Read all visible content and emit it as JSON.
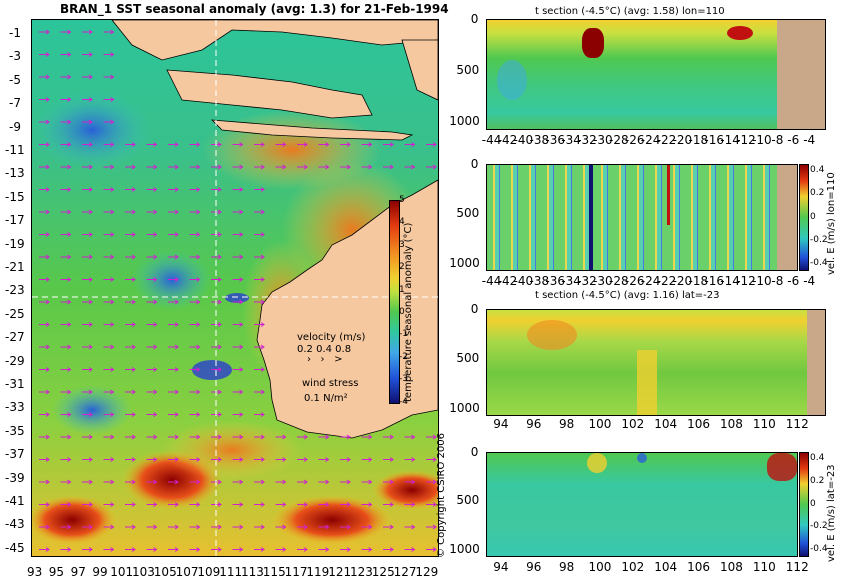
{
  "chart_data": [
    {
      "type": "heatmap",
      "title": "BRAN_1 SST seasonal anomaly (avg: 1.3) for 21-Feb-1994",
      "x_ticks": [
        "93",
        "95",
        "97",
        "99",
        "101",
        "103",
        "105",
        "107",
        "109",
        "111",
        "113",
        "115",
        "117",
        "119",
        "121",
        "123",
        "125",
        "127",
        "129"
      ],
      "y_ticks": [
        "-1",
        "-3",
        "-5",
        "-7",
        "-9",
        "-11",
        "-13",
        "-15",
        "-17",
        "-19",
        "-21",
        "-23",
        "-25",
        "-27",
        "-29",
        "-31",
        "-33",
        "-35",
        "-37",
        "-39",
        "-41",
        "-43",
        "-45"
      ],
      "xlim": [
        93,
        130
      ],
      "ylim": [
        -45,
        0
      ],
      "colorbar_label": "temperature seasonal anomaly (°C)",
      "colorbar_ticks": [
        "5",
        "4",
        "3",
        "2",
        "1",
        "0",
        "-1",
        "-2",
        "-3",
        "-4"
      ],
      "legend": {
        "velocity_title": "velocity (m/s)",
        "velocity_scale": "0.2 0.4 0.8",
        "wind_title": "wind stress",
        "wind_scale": "0.1 N/m²"
      },
      "section_lines": {
        "lon": 110,
        "lat": -23
      },
      "copyright": "© Copyright CSIRO 2006"
    },
    {
      "type": "heatmap",
      "title": "t section (-4.5°C) (avg: 1.58) lon=110",
      "x_ticks": [
        "-44",
        "-42",
        "-40",
        "-38",
        "-36",
        "-34",
        "-32",
        "-30",
        "-28",
        "-26",
        "-24",
        "-22",
        "-20",
        "-18",
        "-16",
        "-14",
        "-12",
        "-10",
        "-8",
        "-6",
        "-4"
      ],
      "y_ticks": [
        "0",
        "500",
        "1000"
      ]
    },
    {
      "type": "heatmap",
      "title": "",
      "x_ticks": [
        "-44",
        "-42",
        "-40",
        "-38",
        "-36",
        "-34",
        "-32",
        "-30",
        "-28",
        "-26",
        "-24",
        "-22",
        "-20",
        "-18",
        "-16",
        "-14",
        "-12",
        "-10",
        "-8",
        "-6",
        "-4"
      ],
      "y_ticks": [
        "0",
        "500",
        "1000"
      ],
      "colorbar_label": "vel. E (m/s) lon=110",
      "colorbar_ticks": [
        "0.4",
        "0.2",
        "0",
        "-0.2",
        "-0.4"
      ]
    },
    {
      "type": "heatmap",
      "title": "t section (-4.5°C) (avg: 1.16) lat=-23",
      "x_ticks": [
        "94",
        "96",
        "98",
        "100",
        "102",
        "104",
        "106",
        "108",
        "110",
        "112"
      ],
      "y_ticks": [
        "0",
        "500",
        "1000"
      ]
    },
    {
      "type": "heatmap",
      "title": "",
      "x_ticks": [
        "94",
        "96",
        "98",
        "100",
        "102",
        "104",
        "106",
        "108",
        "110",
        "112"
      ],
      "y_ticks": [
        "0",
        "500",
        "1000"
      ],
      "colorbar_label": "vel. E (m/s) lat=-23",
      "colorbar_ticks": [
        "0.4",
        "0.2",
        "0",
        "-0.2",
        "-0.4"
      ]
    }
  ]
}
